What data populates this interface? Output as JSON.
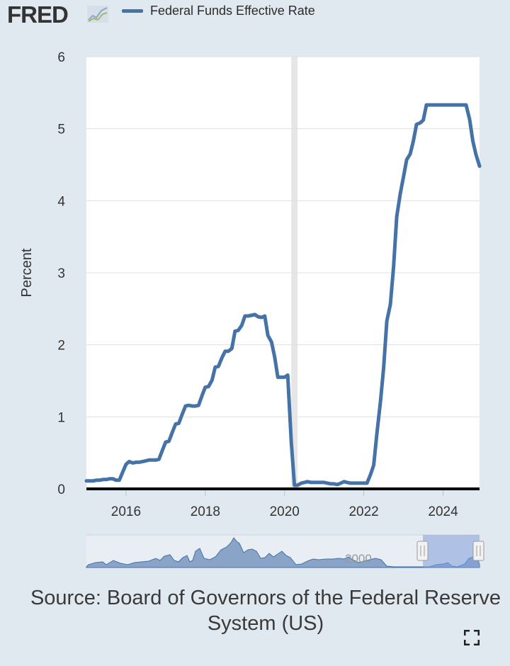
{
  "header": {
    "logo_text": "FRED",
    "legend_label": "Federal Funds Effective Rate",
    "series_color": "#4572a7"
  },
  "chart_data": {
    "type": "line",
    "ylabel": "Percent",
    "ylim": [
      0,
      6
    ],
    "y_ticks": [
      "0",
      "1",
      "2",
      "3",
      "4",
      "5",
      "6"
    ],
    "x_ticks": [
      "2016",
      "2018",
      "2020",
      "2022",
      "2024"
    ],
    "grid": true,
    "legend": "top",
    "recession_shading": {
      "start": 2020.17,
      "end": 2020.33,
      "color": "#e6e6e6"
    },
    "series": [
      {
        "name": "Federal Funds Effective Rate",
        "x": [
          2015.0,
          2015.08,
          2015.17,
          2015.25,
          2015.33,
          2015.42,
          2015.5,
          2015.58,
          2015.67,
          2015.75,
          2015.83,
          2015.92,
          2016.0,
          2016.08,
          2016.17,
          2016.25,
          2016.33,
          2016.42,
          2016.5,
          2016.58,
          2016.67,
          2016.75,
          2016.83,
          2016.92,
          2017.0,
          2017.08,
          2017.17,
          2017.25,
          2017.33,
          2017.42,
          2017.5,
          2017.58,
          2017.67,
          2017.75,
          2017.83,
          2017.92,
          2018.0,
          2018.08,
          2018.17,
          2018.25,
          2018.33,
          2018.42,
          2018.5,
          2018.58,
          2018.67,
          2018.75,
          2018.83,
          2018.92,
          2019.0,
          2019.08,
          2019.17,
          2019.25,
          2019.33,
          2019.42,
          2019.5,
          2019.58,
          2019.67,
          2019.75,
          2019.83,
          2019.92,
          2020.0,
          2020.08,
          2020.17,
          2020.25,
          2020.33,
          2020.42,
          2020.5,
          2020.58,
          2020.67,
          2020.75,
          2020.83,
          2020.92,
          2021.0,
          2021.08,
          2021.17,
          2021.25,
          2021.33,
          2021.42,
          2021.5,
          2021.58,
          2021.67,
          2021.75,
          2021.83,
          2021.92,
          2022.0,
          2022.08,
          2022.17,
          2022.25,
          2022.33,
          2022.42,
          2022.5,
          2022.58,
          2022.67,
          2022.75,
          2022.83,
          2022.92,
          2023.0,
          2023.08,
          2023.17,
          2023.25,
          2023.33,
          2023.42,
          2023.5,
          2023.58,
          2023.67,
          2023.75,
          2023.83,
          2023.92,
          2024.0,
          2024.08,
          2024.17,
          2024.25,
          2024.33,
          2024.42,
          2024.5,
          2024.58,
          2024.67,
          2024.75,
          2024.83,
          2024.92
        ],
        "values": [
          0.11,
          0.11,
          0.11,
          0.12,
          0.12,
          0.13,
          0.13,
          0.14,
          0.14,
          0.12,
          0.12,
          0.24,
          0.34,
          0.38,
          0.36,
          0.37,
          0.37,
          0.38,
          0.39,
          0.4,
          0.4,
          0.4,
          0.41,
          0.54,
          0.65,
          0.66,
          0.79,
          0.9,
          0.91,
          1.04,
          1.15,
          1.16,
          1.15,
          1.15,
          1.16,
          1.3,
          1.41,
          1.42,
          1.51,
          1.69,
          1.7,
          1.82,
          1.91,
          1.91,
          1.95,
          2.19,
          2.2,
          2.27,
          2.4,
          2.4,
          2.41,
          2.42,
          2.39,
          2.38,
          2.4,
          2.13,
          2.04,
          1.83,
          1.55,
          1.55,
          1.55,
          1.58,
          0.65,
          0.05,
          0.05,
          0.08,
          0.09,
          0.1,
          0.09,
          0.09,
          0.09,
          0.09,
          0.09,
          0.08,
          0.07,
          0.07,
          0.06,
          0.08,
          0.1,
          0.09,
          0.08,
          0.08,
          0.08,
          0.08,
          0.08,
          0.08,
          0.2,
          0.33,
          0.77,
          1.21,
          1.68,
          2.33,
          2.56,
          3.08,
          3.78,
          4.1,
          4.33,
          4.57,
          4.65,
          4.83,
          5.06,
          5.08,
          5.12,
          5.33,
          5.33,
          5.33,
          5.33,
          5.33,
          5.33,
          5.33,
          5.33,
          5.33,
          5.33,
          5.33,
          5.33,
          5.33,
          5.13,
          4.83,
          4.64,
          4.48
        ]
      }
    ]
  },
  "navigator": {
    "label": "2000"
  },
  "source_text": "Source: Board of Governors of the Federal Reserve System (US)",
  "icons": {
    "fullscreen": "fullscreen-icon"
  }
}
